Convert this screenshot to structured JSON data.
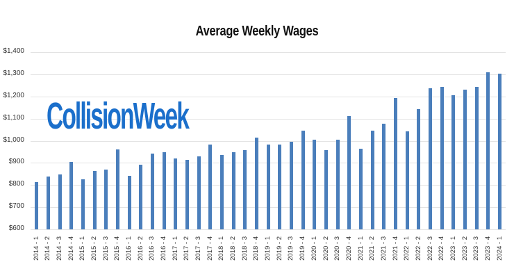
{
  "title": "Average Weekly Wages",
  "logo": {
    "text": "CollisionWeek",
    "color": "#1b6fcb"
  },
  "chart_data": {
    "type": "bar",
    "title": "Average Weekly Wages",
    "xlabel": "",
    "ylabel": "",
    "ylim": [
      600,
      1400
    ],
    "yticks": [
      "$600",
      "$700",
      "$800",
      "$900",
      "$1,000",
      "$1,100",
      "$1,200",
      "$1,300",
      "$1,400"
    ],
    "grid": true,
    "legend": "none",
    "bar_color": "#4a7ebb",
    "categories": [
      "2014 - 1",
      "2014 - 2",
      "2014 - 3",
      "2014 - 4",
      "2015 - 1",
      "2015 - 2",
      "2015 - 3",
      "2015 - 4",
      "2016 - 1",
      "2016 - 2",
      "2016 - 3",
      "2016 - 4",
      "2017 - 1",
      "2017 - 2",
      "2017 - 3",
      "2017 - 4",
      "2018 - 1",
      "2018 - 2",
      "2018 - 3",
      "2018 - 4",
      "2019 - 1",
      "2019 - 2",
      "2019 - 3",
      "2019 - 4",
      "2020 - 1",
      "2020 - 2",
      "2020 - 3",
      "2020 - 4",
      "2021 - 1",
      "2021 - 2",
      "2021 - 3",
      "2021 - 4",
      "2022 - 1",
      "2022 - 2",
      "2022 - 3",
      "2022 - 4",
      "2023 - 1",
      "2023 - 2",
      "2023 - 3",
      "2023 - 4",
      "2024 - 1"
    ],
    "values": [
      813,
      838,
      849,
      904,
      827,
      865,
      871,
      960,
      843,
      892,
      943,
      949,
      920,
      913,
      931,
      983,
      937,
      948,
      959,
      1015,
      983,
      982,
      997,
      1046,
      1005,
      959,
      1004,
      1110,
      963,
      1046,
      1077,
      1192,
      1042,
      1144,
      1237,
      1242,
      1205,
      1231,
      1243,
      1310,
      1302
    ]
  }
}
